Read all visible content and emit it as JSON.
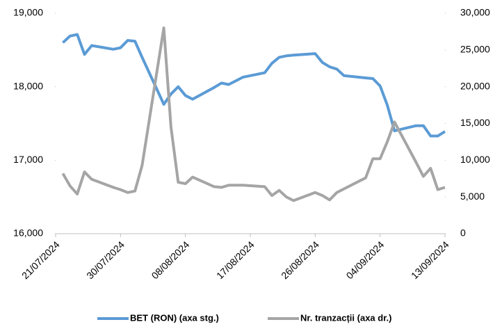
{
  "chart_data": {
    "type": "line",
    "x": [
      "22/07/2024",
      "23/07/2024",
      "24/07/2024",
      "25/07/2024",
      "26/07/2024",
      "29/07/2024",
      "30/07/2024",
      "31/07/2024",
      "01/08/2024",
      "02/08/2024",
      "05/08/2024",
      "06/08/2024",
      "07/08/2024",
      "08/08/2024",
      "09/08/2024",
      "12/08/2024",
      "13/08/2024",
      "14/08/2024",
      "16/08/2024",
      "19/08/2024",
      "20/08/2024",
      "21/08/2024",
      "22/08/2024",
      "23/08/2024",
      "26/08/2024",
      "27/08/2024",
      "28/08/2024",
      "29/08/2024",
      "30/08/2024",
      "02/09/2024",
      "03/09/2024",
      "04/09/2024",
      "05/09/2024",
      "06/09/2024",
      "09/09/2024",
      "10/09/2024",
      "11/09/2024",
      "12/09/2024",
      "13/09/2024"
    ],
    "xlim": [
      "21/07/2024",
      "13/09/2024"
    ],
    "xticks": [
      "21/07/2024",
      "30/07/2024",
      "08/08/2024",
      "17/08/2024",
      "26/08/2024",
      "04/09/2024",
      "13/09/2024"
    ],
    "ylim": [
      16000,
      19000
    ],
    "yticks": [
      {
        "value": 16000,
        "label": "16,000"
      },
      {
        "value": 17000,
        "label": "17,000"
      },
      {
        "value": 18000,
        "label": "18,000"
      },
      {
        "value": 19000,
        "label": "19,000"
      }
    ],
    "y2lim": [
      0,
      30000
    ],
    "y2ticks": [
      0,
      {
        "value": 5000,
        "label": "5,000"
      },
      {
        "value": 10000,
        "label": "10,000"
      },
      {
        "value": 15000,
        "label": "15,000"
      },
      {
        "value": 20000,
        "label": "20,000"
      },
      {
        "value": 25000,
        "label": "25,000"
      },
      {
        "value": 30000,
        "label": "30,000"
      }
    ],
    "series": [
      {
        "name": "BET (RON) (axa stg.)",
        "color": "#5b9bd5",
        "values": [
          18600,
          18690,
          18710,
          18440,
          18560,
          18510,
          18530,
          18630,
          18620,
          18400,
          17760,
          17900,
          18000,
          17880,
          17830,
          17990,
          18050,
          18030,
          18130,
          18190,
          18320,
          18400,
          18420,
          18430,
          18450,
          18330,
          18270,
          18240,
          18150,
          18120,
          18110,
          18010,
          17750,
          17400,
          17470,
          17470,
          17330,
          17330,
          17390
        ]
      },
      {
        "name": "Nr. tranzacții (axa dr.)",
        "color": "#a5a5a5",
        "axis": "y2",
        "values": [
          8200,
          6500,
          5400,
          8400,
          7400,
          6300,
          6000,
          5600,
          5800,
          9300,
          28000,
          14500,
          7000,
          6800,
          7700,
          6400,
          6300,
          6600,
          6600,
          6400,
          5200,
          5900,
          5000,
          4500,
          5600,
          5200,
          4600,
          5600,
          6100,
          7600,
          10200,
          10200,
          12500,
          15200,
          9700,
          7800,
          8900,
          6000,
          6300
        ]
      }
    ],
    "legend": "bottom"
  }
}
